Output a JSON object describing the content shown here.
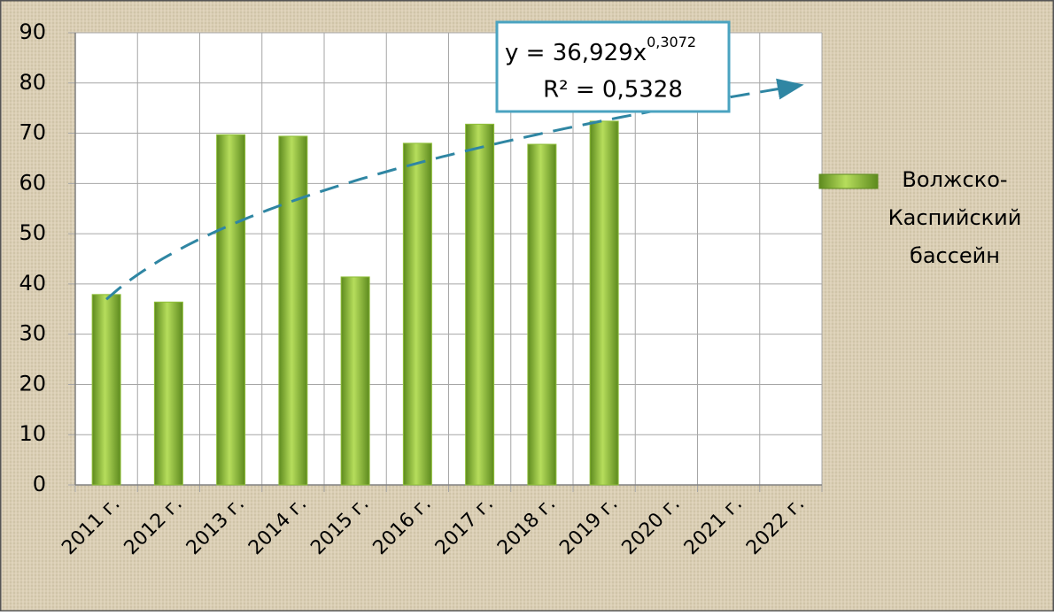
{
  "chart_data": {
    "type": "bar",
    "categories": [
      "2011 г.",
      "2012 г.",
      "2013 г.",
      "2014 г.",
      "2015 г.",
      "2016 г.",
      "2017 г.",
      "2018 г.",
      "2019 г.",
      "2020 г.",
      "2021 г.",
      "2022 г."
    ],
    "series": [
      {
        "name": "Волжско-Каспийский бассейн",
        "color": "#8fbf3a",
        "values": [
          37.9,
          36.4,
          69.7,
          69.4,
          41.4,
          68,
          71.8,
          67.8,
          72.4,
          null,
          null,
          null
        ]
      }
    ],
    "ylim": [
      0,
      90
    ],
    "yticks": [
      0,
      10,
      20,
      30,
      40,
      50,
      60,
      70,
      80,
      90
    ],
    "grid": true,
    "legend": "right",
    "trendline": {
      "type": "power",
      "color": "#2f86a3",
      "prefix": "y = ",
      "coefficient": {
        "value": 36.929,
        "label": "36,929"
      },
      "variable": "x",
      "exponent": {
        "value": 0.3072,
        "label": "0,3072"
      },
      "r_squared": "R² = 0,5328"
    }
  }
}
